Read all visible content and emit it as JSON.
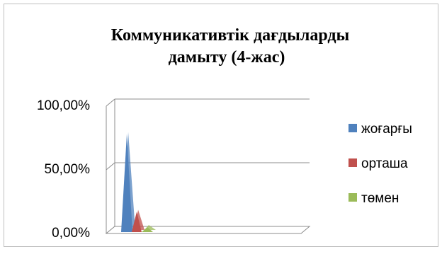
{
  "chart_data": {
    "type": "area",
    "title_lines": [
      "Коммуникативтік дағдыларды",
      "дамыту (4-жас)"
    ],
    "ylim": [
      0,
      1
    ],
    "y_ticks": [
      {
        "value": 0,
        "label": "0,00%"
      },
      {
        "value": 0.5,
        "label": "50,00%"
      },
      {
        "value": 1,
        "label": "100,00%"
      }
    ],
    "grid": true,
    "three_d": true,
    "legend_position": "right",
    "series": [
      {
        "name": "жоғарғы",
        "color": "#4F81BD",
        "values": [
          0.78
        ]
      },
      {
        "name": "орташа",
        "color": "#C0504D",
        "values": [
          0.17
        ]
      },
      {
        "name": "төмен",
        "color": "#9BBB59",
        "values": [
          0.05
        ]
      }
    ]
  }
}
